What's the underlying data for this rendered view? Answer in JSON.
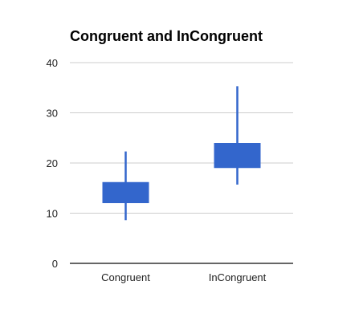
{
  "chart_data": {
    "type": "candlestick",
    "title": "Congruent and InCongruent",
    "xlabel": "",
    "ylabel": "",
    "ylim": [
      0,
      40
    ],
    "yticks": [
      0,
      10,
      20,
      30,
      40
    ],
    "grid": true,
    "legend": "none",
    "categories": [
      "Congruent",
      "InCongruent"
    ],
    "series": [
      {
        "values": [
          {
            "category": "Congruent",
            "low": 8.6,
            "open": 12,
            "close": 16.2,
            "high": 22.3
          },
          {
            "category": "InCongruent",
            "low": 15.7,
            "open": 19,
            "close": 24,
            "high": 35.3
          }
        ]
      }
    ],
    "colors": {
      "box": "#3366cc",
      "grid": "#cccccc",
      "axis": "#333333",
      "tick_text": "#222222"
    }
  }
}
